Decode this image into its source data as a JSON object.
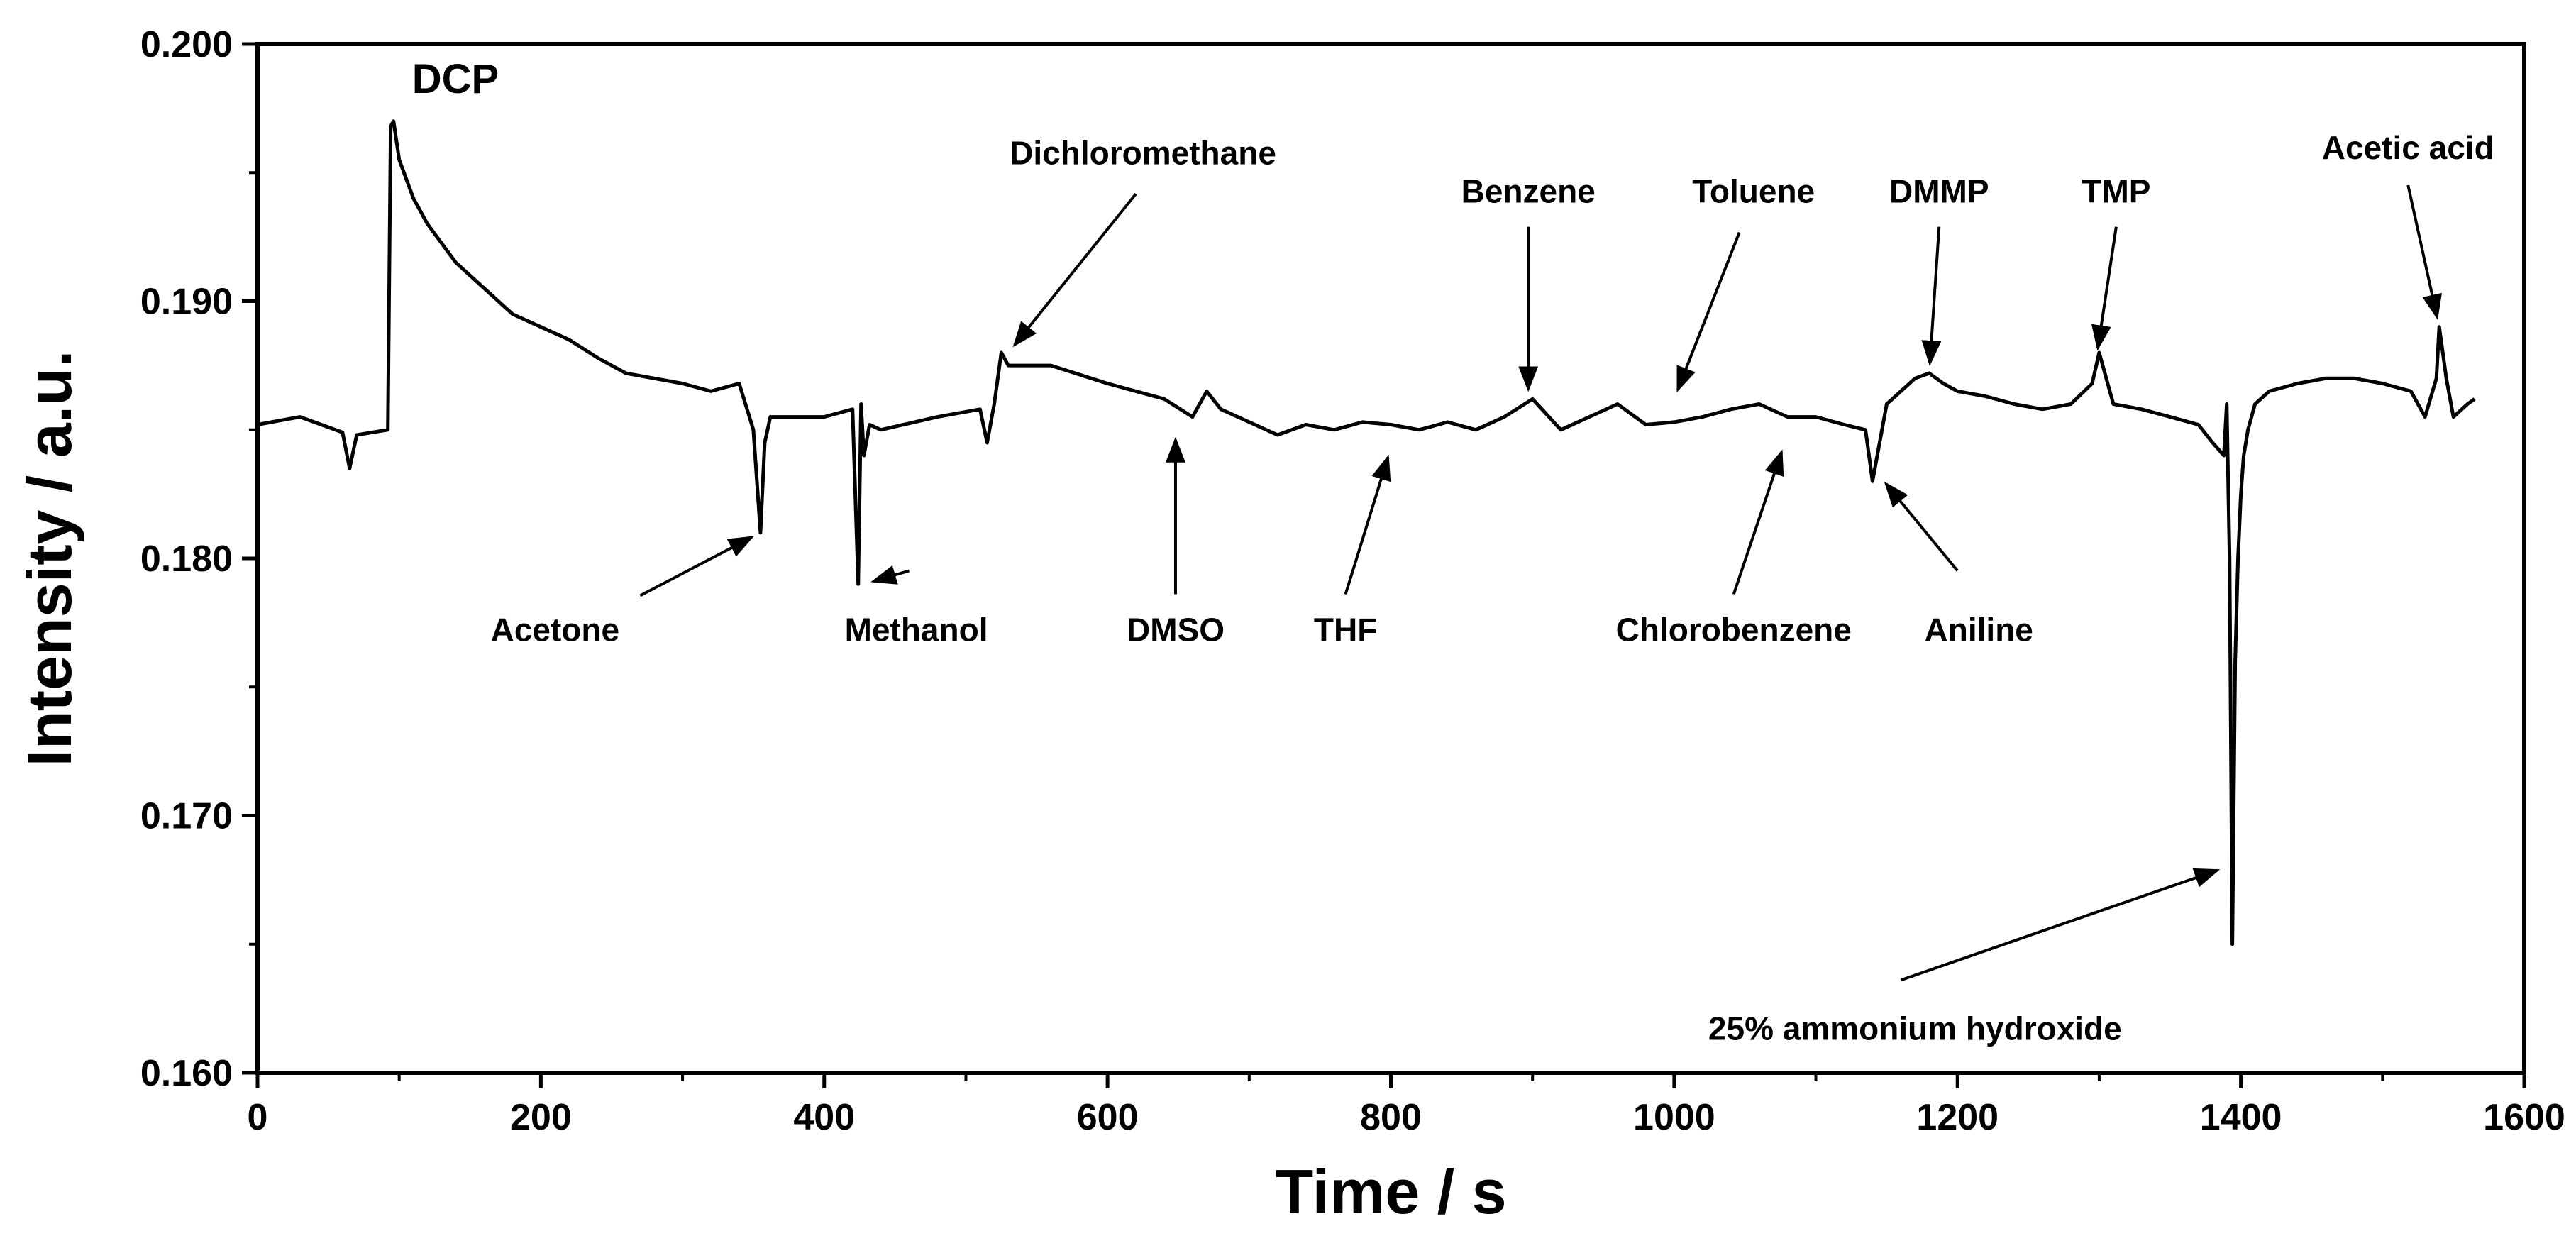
{
  "chart_data": {
    "type": "line",
    "title": "",
    "xlabel": "Time / s",
    "ylabel": "Intensity / a.u.",
    "xlim": [
      0,
      1600
    ],
    "ylim": [
      0.16,
      0.2
    ],
    "xticks": [
      0,
      200,
      400,
      600,
      800,
      1000,
      1200,
      1400,
      1600
    ],
    "xtick_labels": [
      "0",
      "200",
      "400",
      "600",
      "800",
      "1000",
      "1200",
      "1400",
      "1600"
    ],
    "yticks": [
      0.16,
      0.17,
      0.18,
      0.19,
      0.2
    ],
    "ytick_labels": [
      "0.160",
      "0.170",
      "0.180",
      "0.190",
      "0.200"
    ],
    "series": [
      {
        "name": "Intensity",
        "color": "#000000",
        "x": [
          0,
          30,
          60,
          65,
          70,
          92,
          94,
          96,
          100,
          110,
          120,
          140,
          160,
          180,
          200,
          220,
          240,
          260,
          280,
          300,
          320,
          340,
          350,
          355,
          358,
          362,
          370,
          400,
          420,
          424,
          426,
          428,
          432,
          440,
          480,
          510,
          515,
          520,
          525,
          530,
          560,
          600,
          640,
          660,
          670,
          680,
          700,
          720,
          740,
          760,
          780,
          800,
          820,
          840,
          860,
          880,
          900,
          920,
          940,
          960,
          980,
          1000,
          1020,
          1040,
          1060,
          1080,
          1100,
          1120,
          1135,
          1140,
          1145,
          1150,
          1160,
          1170,
          1180,
          1190,
          1200,
          1220,
          1240,
          1260,
          1280,
          1295,
          1300,
          1310,
          1330,
          1350,
          1370,
          1380,
          1388,
          1390,
          1392,
          1394,
          1396,
          1398,
          1400,
          1402,
          1405,
          1410,
          1420,
          1440,
          1460,
          1480,
          1500,
          1520,
          1530,
          1538,
          1540,
          1545,
          1550,
          1560,
          1565
        ],
        "values": [
          0.1852,
          0.1855,
          0.1849,
          0.1835,
          0.1848,
          0.185,
          0.1968,
          0.197,
          0.1955,
          0.194,
          0.193,
          0.1915,
          0.1905,
          0.1895,
          0.189,
          0.1885,
          0.1878,
          0.1872,
          0.187,
          0.1868,
          0.1865,
          0.1868,
          0.185,
          0.181,
          0.1845,
          0.1855,
          0.1855,
          0.1855,
          0.1858,
          0.179,
          0.186,
          0.184,
          0.1852,
          0.185,
          0.1855,
          0.1858,
          0.1845,
          0.186,
          0.188,
          0.1875,
          0.1875,
          0.1868,
          0.1862,
          0.1855,
          0.1865,
          0.1858,
          0.1853,
          0.1848,
          0.1852,
          0.185,
          0.1853,
          0.1852,
          0.185,
          0.1853,
          0.185,
          0.1855,
          0.1862,
          0.185,
          0.1855,
          0.186,
          0.1852,
          0.1853,
          0.1855,
          0.1858,
          0.186,
          0.1855,
          0.1855,
          0.1852,
          0.185,
          0.183,
          0.1845,
          0.186,
          0.1865,
          0.187,
          0.1872,
          0.1868,
          0.1865,
          0.1863,
          0.186,
          0.1858,
          0.186,
          0.1868,
          0.188,
          0.186,
          0.1858,
          0.1855,
          0.1852,
          0.1845,
          0.184,
          0.186,
          0.18,
          0.165,
          0.176,
          0.18,
          0.1825,
          0.184,
          0.185,
          0.186,
          0.1865,
          0.1868,
          0.187,
          0.187,
          0.1868,
          0.1865,
          0.1855,
          0.187,
          0.189,
          0.187,
          0.1855,
          0.186,
          0.1862
        ]
      }
    ],
    "annotations": [
      {
        "text": "DCP",
        "x": 100,
        "y": 0.197,
        "arrow": false
      },
      {
        "text": "Acetone",
        "x": 355,
        "y": 0.181,
        "arrow": true,
        "label_x": 210,
        "label_y": 0.178
      },
      {
        "text": "Methanol",
        "x": 428,
        "y": 0.179,
        "arrow": true,
        "label_x": 465,
        "label_y": 0.178
      },
      {
        "text": "Dichloromethane",
        "x": 530,
        "y": 0.188,
        "arrow": true,
        "label_x": 625,
        "label_y": 0.195
      },
      {
        "text": "DMSO",
        "x": 648,
        "y": 0.185,
        "arrow": true,
        "label_x": 648,
        "label_y": 0.178
      },
      {
        "text": "THF",
        "x": 800,
        "y": 0.1843,
        "arrow": true,
        "label_x": 768,
        "label_y": 0.178
      },
      {
        "text": "Benzene",
        "x": 897,
        "y": 0.1862,
        "arrow": true,
        "label_x": 897,
        "label_y": 0.1935
      },
      {
        "text": "Toluene",
        "x": 1000,
        "y": 0.1862,
        "arrow": true,
        "label_x": 1056,
        "label_y": 0.1935
      },
      {
        "text": "Chlorobenzene",
        "x": 1078,
        "y": 0.1845,
        "arrow": true,
        "label_x": 1042,
        "label_y": 0.178
      },
      {
        "text": "Aniline",
        "x": 1145,
        "y": 0.1832,
        "arrow": true,
        "label_x": 1215,
        "label_y": 0.178
      },
      {
        "text": "DMMP",
        "x": 1180,
        "y": 0.1872,
        "arrow": true,
        "label_x": 1187,
        "label_y": 0.1935
      },
      {
        "text": "TMP",
        "x": 1298,
        "y": 0.1878,
        "arrow": true,
        "label_x": 1312,
        "label_y": 0.1935
      },
      {
        "text": "Acetic acid",
        "x": 1540,
        "y": 0.189,
        "arrow": true,
        "label_x": 1518,
        "label_y": 0.1952
      },
      {
        "text": "25% ammonium hydroxide",
        "x": 1390,
        "y": 0.168,
        "arrow": true,
        "label_x": 1170,
        "label_y": 0.1625
      }
    ]
  }
}
